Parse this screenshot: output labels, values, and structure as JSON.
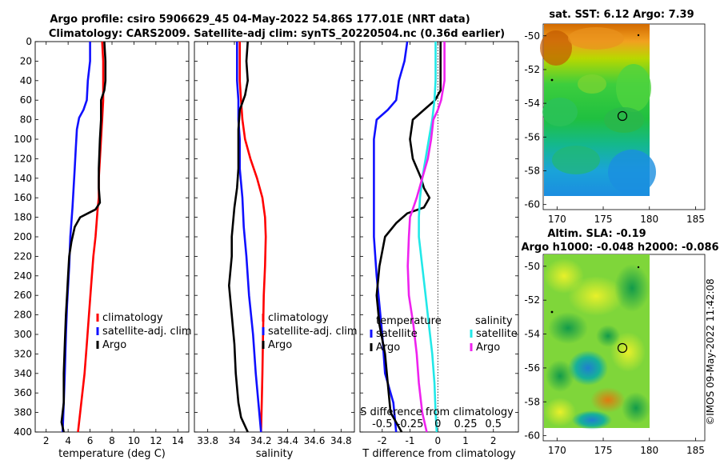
{
  "titles": {
    "line1": "Argo profile: csiro 5906629_45 04-May-2022 54.86S 177.01E (NRT data)",
    "line2": "Climatology: CARS2009. Satellite-adj clim: synTS_20220504.nc (0.36d earlier)",
    "sst": "sat. SST: 6.12 Argo: 7.39",
    "sla1": "Altim. SLA: -0.19",
    "sla2": "Argo h1000: -0.048 h2000: -0.086",
    "watermark": "©IMOS 09-May-2022 11:42:08"
  },
  "colors": {
    "climatology": "#ff0000",
    "satellite": "#1010ff",
    "argo": "#000000",
    "salinity_sat": "#22e8e8",
    "salinity_argo": "#ee22ee"
  },
  "chart_data": [
    {
      "type": "line",
      "xlabel": "temperature (deg C)",
      "xlim": [
        1,
        15
      ],
      "xticks": [
        2,
        4,
        6,
        8,
        10,
        12,
        14
      ],
      "ylim": [
        400,
        0
      ],
      "yticks": [
        0,
        20,
        40,
        60,
        80,
        100,
        120,
        140,
        160,
        180,
        200,
        220,
        240,
        260,
        280,
        300,
        320,
        340,
        360,
        380,
        400
      ],
      "legend": [
        "climatology",
        "satellite-adj. clim",
        "Argo"
      ],
      "series": [
        {
          "name": "climatology",
          "color": "#ff0000",
          "points": [
            [
              7.1,
              0
            ],
            [
              7.2,
              20
            ],
            [
              7.2,
              40
            ],
            [
              7.2,
              60
            ],
            [
              7.1,
              80
            ],
            [
              7.0,
              100
            ],
            [
              6.9,
              120
            ],
            [
              6.8,
              140
            ],
            [
              6.8,
              160
            ],
            [
              6.7,
              170
            ],
            [
              6.5,
              200
            ],
            [
              6.3,
              220
            ],
            [
              6.1,
              250
            ],
            [
              5.9,
              280
            ],
            [
              5.7,
              310
            ],
            [
              5.5,
              340
            ],
            [
              5.2,
              370
            ],
            [
              4.9,
              400
            ]
          ]
        },
        {
          "name": "satellite-adj. clim",
          "color": "#1010ff",
          "points": [
            [
              6.0,
              0
            ],
            [
              6.0,
              20
            ],
            [
              5.8,
              40
            ],
            [
              5.7,
              60
            ],
            [
              5.4,
              70
            ],
            [
              5.0,
              78
            ],
            [
              4.8,
              90
            ],
            [
              4.7,
              110
            ],
            [
              4.6,
              130
            ],
            [
              4.5,
              150
            ],
            [
              4.4,
              170
            ],
            [
              4.2,
              200
            ],
            [
              4.1,
              230
            ],
            [
              3.9,
              270
            ],
            [
              3.8,
              300
            ],
            [
              3.7,
              340
            ],
            [
              3.6,
              370
            ],
            [
              3.5,
              400
            ]
          ]
        },
        {
          "name": "Argo",
          "color": "#000000",
          "points": [
            [
              7.3,
              0
            ],
            [
              7.4,
              20
            ],
            [
              7.4,
              40
            ],
            [
              7.3,
              50
            ],
            [
              7.0,
              60
            ],
            [
              7.0,
              80
            ],
            [
              6.9,
              100
            ],
            [
              6.8,
              130
            ],
            [
              6.8,
              150
            ],
            [
              6.9,
              165
            ],
            [
              6.5,
              172
            ],
            [
              5.8,
              176
            ],
            [
              5.1,
              180
            ],
            [
              4.6,
              190
            ],
            [
              4.3,
              205
            ],
            [
              4.1,
              220
            ],
            [
              4.0,
              240
            ],
            [
              3.9,
              260
            ],
            [
              3.8,
              280
            ],
            [
              3.7,
              310
            ],
            [
              3.6,
              340
            ],
            [
              3.6,
              370
            ],
            [
              3.4,
              390
            ],
            [
              3.6,
              400
            ]
          ]
        }
      ]
    },
    {
      "type": "line",
      "xlabel": "salinity",
      "xlim": [
        33.7,
        34.9
      ],
      "xticks": [
        33.8,
        34,
        34.2,
        34.4,
        34.6,
        34.8
      ],
      "ylim": [
        400,
        0
      ],
      "legend": [
        "climatology",
        "satellite-adj. clim",
        "Argo"
      ],
      "series": [
        {
          "name": "climatology",
          "color": "#ff0000",
          "points": [
            [
              34.04,
              0
            ],
            [
              34.04,
              40
            ],
            [
              34.05,
              60
            ],
            [
              34.06,
              80
            ],
            [
              34.08,
              100
            ],
            [
              34.12,
              120
            ],
            [
              34.17,
              140
            ],
            [
              34.21,
              160
            ],
            [
              34.23,
              180
            ],
            [
              34.235,
              200
            ],
            [
              34.23,
              230
            ],
            [
              34.22,
              260
            ],
            [
              34.215,
              300
            ],
            [
              34.21,
              340
            ],
            [
              34.205,
              370
            ],
            [
              34.2,
              400
            ]
          ]
        },
        {
          "name": "satellite-adj. clim",
          "color": "#1010ff",
          "points": [
            [
              34.02,
              0
            ],
            [
              34.02,
              40
            ],
            [
              34.03,
              60
            ],
            [
              34.03,
              80
            ],
            [
              34.04,
              100
            ],
            [
              34.04,
              130
            ],
            [
              34.06,
              160
            ],
            [
              34.07,
              190
            ],
            [
              34.09,
              220
            ],
            [
              34.11,
              260
            ],
            [
              34.14,
              300
            ],
            [
              34.16,
              340
            ],
            [
              34.18,
              370
            ],
            [
              34.2,
              400
            ]
          ]
        },
        {
          "name": "Argo",
          "color": "#000000",
          "points": [
            [
              34.1,
              0
            ],
            [
              34.09,
              20
            ],
            [
              34.1,
              40
            ],
            [
              34.08,
              55
            ],
            [
              34.04,
              70
            ],
            [
              34.03,
              90
            ],
            [
              34.03,
              110
            ],
            [
              34.03,
              130
            ],
            [
              34.02,
              150
            ],
            [
              34.0,
              170
            ],
            [
              33.98,
              200
            ],
            [
              33.98,
              220
            ],
            [
              33.96,
              250
            ],
            [
              33.98,
              280
            ],
            [
              34.0,
              310
            ],
            [
              34.01,
              340
            ],
            [
              34.03,
              370
            ],
            [
              34.05,
              385
            ],
            [
              34.1,
              400
            ]
          ]
        }
      ]
    },
    {
      "type": "line",
      "xlabel": "T difference from climatology",
      "x2label": "S difference from climatology",
      "xlim": [
        -2.8,
        2.9
      ],
      "xticks": [
        -2,
        -1,
        0,
        1,
        2
      ],
      "x2lim": [
        -0.7,
        0.725
      ],
      "x2ticks": [
        -0.5,
        -0.25,
        0,
        0.25,
        0.5
      ],
      "x2ticklabels": [
        "-0.5",
        "-0.25",
        "0",
        "0.25",
        "0.5"
      ],
      "ylim": [
        400,
        0
      ],
      "legend": {
        "temperature_title": "temperature",
        "salinity_title": "salinity",
        "temperature": [
          "satellite",
          "Argo"
        ],
        "salinity": [
          "satellite",
          "Argo"
        ]
      },
      "series": [
        {
          "name": "T satellite",
          "color": "#1010ff",
          "points": [
            [
              -1.1,
              0
            ],
            [
              -1.2,
              20
            ],
            [
              -1.4,
              40
            ],
            [
              -1.5,
              60
            ],
            [
              -1.8,
              70
            ],
            [
              -2.2,
              80
            ],
            [
              -2.3,
              100
            ],
            [
              -2.3,
              130
            ],
            [
              -2.3,
              170
            ],
            [
              -2.3,
              200
            ],
            [
              -2.2,
              240
            ],
            [
              -2.1,
              270
            ],
            [
              -2.0,
              300
            ],
            [
              -1.9,
              340
            ],
            [
              -1.6,
              370
            ],
            [
              -1.5,
              400
            ]
          ]
        },
        {
          "name": "T Argo",
          "color": "#000000",
          "points": [
            [
              0.1,
              0
            ],
            [
              0.1,
              30
            ],
            [
              0.1,
              50
            ],
            [
              -0.1,
              60
            ],
            [
              -0.5,
              70
            ],
            [
              -0.9,
              80
            ],
            [
              -1.0,
              100
            ],
            [
              -0.9,
              120
            ],
            [
              -0.6,
              140
            ],
            [
              -0.5,
              150
            ],
            [
              -0.3,
              160
            ],
            [
              -0.5,
              170
            ],
            [
              -1.1,
              176
            ],
            [
              -1.5,
              186
            ],
            [
              -1.9,
              200
            ],
            [
              -2.1,
              230
            ],
            [
              -2.2,
              260
            ],
            [
              -2.1,
              290
            ],
            [
              -1.9,
              320
            ],
            [
              -1.8,
              350
            ],
            [
              -1.7,
              380
            ],
            [
              -1.3,
              400
            ]
          ]
        },
        {
          "name": "S satellite",
          "color": "#22e8e8",
          "points": [
            [
              -0.02,
              0
            ],
            [
              -0.02,
              20
            ],
            [
              -0.02,
              40
            ],
            [
              -0.03,
              60
            ],
            [
              -0.05,
              80
            ],
            [
              -0.08,
              100
            ],
            [
              -0.11,
              120
            ],
            [
              -0.14,
              140
            ],
            [
              -0.16,
              160
            ],
            [
              -0.17,
              180
            ],
            [
              -0.17,
              200
            ],
            [
              -0.14,
              230
            ],
            [
              -0.11,
              260
            ],
            [
              -0.08,
              290
            ],
            [
              -0.05,
              320
            ],
            [
              -0.03,
              350
            ],
            [
              -0.02,
              380
            ],
            [
              -0.01,
              400
            ]
          ]
        },
        {
          "name": "S Argo",
          "color": "#ee22ee",
          "points": [
            [
              0.06,
              0
            ],
            [
              0.06,
              40
            ],
            [
              0.03,
              60
            ],
            [
              0.0,
              70
            ],
            [
              -0.04,
              80
            ],
            [
              -0.06,
              100
            ],
            [
              -0.09,
              120
            ],
            [
              -0.14,
              140
            ],
            [
              -0.19,
              160
            ],
            [
              -0.25,
              180
            ],
            [
              -0.26,
              200
            ],
            [
              -0.27,
              230
            ],
            [
              -0.26,
              260
            ],
            [
              -0.22,
              290
            ],
            [
              -0.19,
              320
            ],
            [
              -0.17,
              350
            ],
            [
              -0.14,
              380
            ],
            [
              -0.1,
              400
            ]
          ]
        }
      ]
    },
    {
      "type": "heatmap",
      "title": "sat. SST: 6.12 Argo: 7.39",
      "xticks": [
        170,
        175,
        180,
        185
      ],
      "yticks": [
        -50,
        -52,
        -54,
        -56,
        -58,
        -60
      ],
      "xlim": [
        168.5,
        186
      ],
      "ylim": [
        -60.3,
        -49.3
      ],
      "data_extent": {
        "lon": [
          169,
          180
        ],
        "lat": [
          -60,
          -49.3
        ]
      },
      "marker": {
        "lon": 177.01,
        "lat": -54.86
      }
    },
    {
      "type": "heatmap",
      "title": "Altim. SLA: -0.19",
      "xticks": [
        170,
        175,
        180,
        185
      ],
      "yticks": [
        -50,
        -52,
        -54,
        -56,
        -58,
        -60
      ],
      "xlim": [
        168.5,
        186
      ],
      "ylim": [
        -60.3,
        -49.3
      ],
      "data_extent": {
        "lon": [
          169,
          180
        ],
        "lat": [
          -60,
          -49.3
        ]
      },
      "marker": {
        "lon": 177.01,
        "lat": -54.86
      }
    }
  ]
}
